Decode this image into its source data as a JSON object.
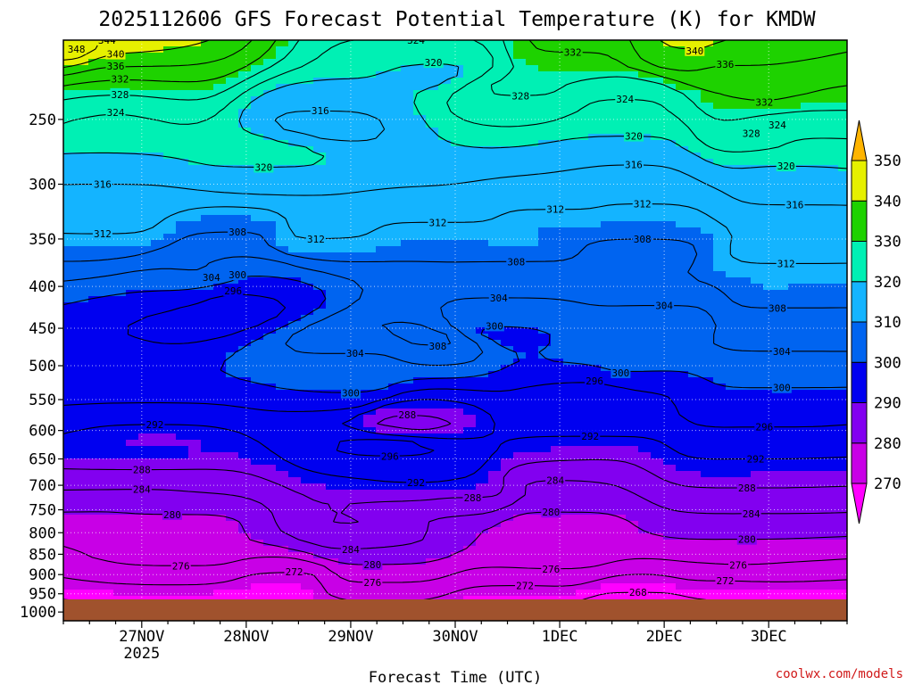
{
  "chart_data": {
    "type": "contour",
    "title": "2025112606 GFS Forecast Potential Temperature (K) for KMDW",
    "xlabel": "Forecast Time (UTC)",
    "ylabel": "",
    "credit": "coolwx.com/models",
    "x_ticks": [
      {
        "label": "27NOV",
        "sub": "2025",
        "hours": 18
      },
      {
        "label": "28NOV",
        "sub": "",
        "hours": 42
      },
      {
        "label": "29NOV",
        "sub": "",
        "hours": 66
      },
      {
        "label": "30NOV",
        "sub": "",
        "hours": 90
      },
      {
        "label": "1DEC",
        "sub": "",
        "hours": 114
      },
      {
        "label": "2DEC",
        "sub": "",
        "hours": 138
      },
      {
        "label": "3DEC",
        "sub": "",
        "hours": 162
      }
    ],
    "xlim_hours": [
      0,
      180
    ],
    "y_ticks": [
      250,
      300,
      350,
      400,
      450,
      500,
      550,
      600,
      650,
      700,
      750,
      800,
      850,
      900,
      950,
      1000
    ],
    "ylim_hpa": [
      1025,
      200
    ],
    "y_scale": "log-pressure",
    "colorbar": {
      "levels": [
        270,
        280,
        290,
        300,
        310,
        320,
        330,
        340,
        350
      ],
      "colors": [
        "#ff00ff",
        "#c800e6",
        "#8200f0",
        "#0000f0",
        "#0064f0",
        "#14b4ff",
        "#00f0b4",
        "#1ed200",
        "#e6f000",
        "#ffb400"
      ]
    },
    "contour_labels": [
      {
        "v": 348,
        "h": 3,
        "p": 205
      },
      {
        "v": 344,
        "h": 10,
        "p": 200
      },
      {
        "v": 340,
        "h": 12,
        "p": 208
      },
      {
        "v": 336,
        "h": 12,
        "p": 215
      },
      {
        "v": 332,
        "h": 13,
        "p": 223
      },
      {
        "v": 328,
        "h": 13,
        "p": 233
      },
      {
        "v": 324,
        "h": 12,
        "p": 245
      },
      {
        "v": 320,
        "h": 46,
        "p": 286
      },
      {
        "v": 316,
        "h": 9,
        "p": 300
      },
      {
        "v": 312,
        "h": 9,
        "p": 345
      },
      {
        "v": 308,
        "h": 40,
        "p": 343
      },
      {
        "v": 304,
        "h": 34,
        "p": 390
      },
      {
        "v": 300,
        "h": 40,
        "p": 387
      },
      {
        "v": 296,
        "h": 39,
        "p": 405
      },
      {
        "v": 292,
        "h": 21,
        "p": 590
      },
      {
        "v": 288,
        "h": 18,
        "p": 670
      },
      {
        "v": 284,
        "h": 18,
        "p": 708
      },
      {
        "v": 280,
        "h": 25,
        "p": 760
      },
      {
        "v": 276,
        "h": 27,
        "p": 878
      },
      {
        "v": 272,
        "h": 53,
        "p": 893
      },
      {
        "v": 316,
        "h": 59,
        "p": 244
      },
      {
        "v": 312,
        "h": 58,
        "p": 350
      },
      {
        "v": 304,
        "h": 67,
        "p": 483
      },
      {
        "v": 300,
        "h": 66,
        "p": 540
      },
      {
        "v": 296,
        "h": 75,
        "p": 645
      },
      {
        "v": 292,
        "h": 81,
        "p": 695
      },
      {
        "v": 288,
        "h": 79,
        "p": 574
      },
      {
        "v": 284,
        "h": 66,
        "p": 838
      },
      {
        "v": 280,
        "h": 71,
        "p": 875
      },
      {
        "v": 276,
        "h": 71,
        "p": 920
      },
      {
        "v": 324,
        "h": 81,
        "p": 200
      },
      {
        "v": 320,
        "h": 85,
        "p": 213
      },
      {
        "v": 312,
        "h": 86,
        "p": 334
      },
      {
        "v": 308,
        "h": 86,
        "p": 473
      },
      {
        "v": 288,
        "h": 94,
        "p": 725
      },
      {
        "v": 328,
        "h": 105,
        "p": 234
      },
      {
        "v": 308,
        "h": 104,
        "p": 373
      },
      {
        "v": 304,
        "h": 100,
        "p": 413
      },
      {
        "v": 300,
        "h": 99,
        "p": 447
      },
      {
        "v": 312,
        "h": 113,
        "p": 322
      },
      {
        "v": 284,
        "h": 113,
        "p": 690
      },
      {
        "v": 280,
        "h": 112,
        "p": 755
      },
      {
        "v": 276,
        "h": 112,
        "p": 886
      },
      {
        "v": 272,
        "h": 106,
        "p": 928
      },
      {
        "v": 332,
        "h": 117,
        "p": 207
      },
      {
        "v": 324,
        "h": 129,
        "p": 236
      },
      {
        "v": 320,
        "h": 131,
        "p": 262
      },
      {
        "v": 316,
        "h": 131,
        "p": 284
      },
      {
        "v": 312,
        "h": 133,
        "p": 317
      },
      {
        "v": 308,
        "h": 133,
        "p": 350
      },
      {
        "v": 304,
        "h": 138,
        "p": 422
      },
      {
        "v": 300,
        "h": 128,
        "p": 510
      },
      {
        "v": 296,
        "h": 122,
        "p": 522
      },
      {
        "v": 292,
        "h": 121,
        "p": 610
      },
      {
        "v": 268,
        "h": 132,
        "p": 946
      },
      {
        "v": 340,
        "h": 145,
        "p": 206
      },
      {
        "v": 336,
        "h": 152,
        "p": 214
      },
      {
        "v": 332,
        "h": 161,
        "p": 238
      },
      {
        "v": 328,
        "h": 158,
        "p": 260
      },
      {
        "v": 324,
        "h": 164,
        "p": 254
      },
      {
        "v": 320,
        "h": 166,
        "p": 285
      },
      {
        "v": 316,
        "h": 168,
        "p": 318
      },
      {
        "v": 312,
        "h": 166,
        "p": 375
      },
      {
        "v": 308,
        "h": 164,
        "p": 425
      },
      {
        "v": 304,
        "h": 165,
        "p": 480
      },
      {
        "v": 300,
        "h": 165,
        "p": 532
      },
      {
        "v": 296,
        "h": 161,
        "p": 594
      },
      {
        "v": 292,
        "h": 159,
        "p": 650
      },
      {
        "v": 288,
        "h": 157,
        "p": 705
      },
      {
        "v": 284,
        "h": 158,
        "p": 758
      },
      {
        "v": 280,
        "h": 157,
        "p": 815
      },
      {
        "v": 276,
        "h": 155,
        "p": 876
      },
      {
        "v": 272,
        "h": 152,
        "p": 915
      }
    ]
  }
}
